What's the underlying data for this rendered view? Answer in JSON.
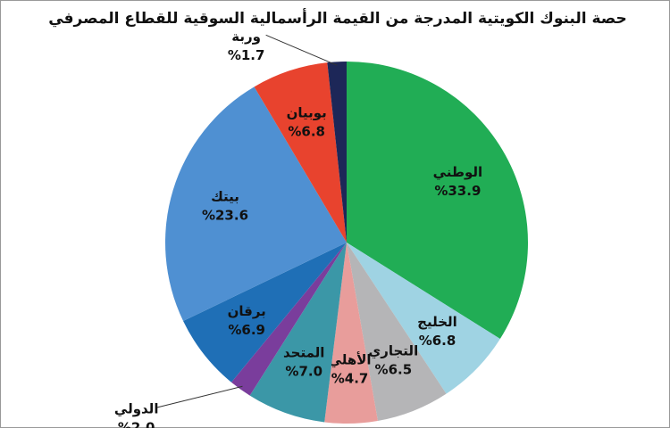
{
  "chart_data": {
    "type": "pie",
    "title": "حصة البنوك الكويتية المدرجة من القيمة الرأسمالية السوقية للقطاع المصرفي",
    "categories": [
      "الوطني",
      "الخليج",
      "التجاري",
      "الأهلي",
      "المتحد",
      "الدولي",
      "برقان",
      "بيتك",
      "بوبيان",
      "وربة"
    ],
    "values": [
      33.9,
      6.8,
      6.5,
      4.7,
      7.0,
      2.0,
      6.9,
      23.6,
      6.8,
      1.7
    ],
    "value_labels": [
      "%33.9",
      "%6.8",
      "%6.5",
      "%4.7",
      "%7.0",
      "%2.0",
      "%6.9",
      "%23.6",
      "%6.8",
      "%1.7"
    ],
    "colors": [
      "#21ad55",
      "#9fd3e3",
      "#b5b5b7",
      "#e89d9b",
      "#3b97a7",
      "#7a3d9c",
      "#1f6fb6",
      "#4f90d2",
      "#e8432e",
      "#1d2758"
    ]
  }
}
